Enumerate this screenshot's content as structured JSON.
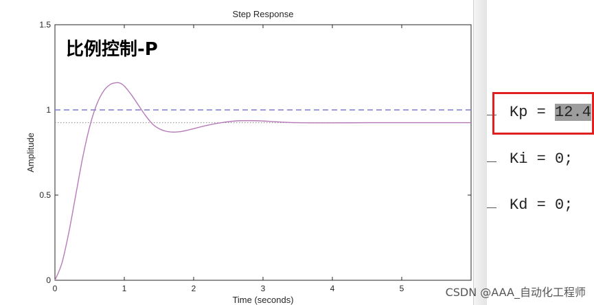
{
  "chart_data": {
    "type": "line",
    "title": "Step Response",
    "overlay_title": "比例控制-P",
    "xlabel": "Time (seconds)",
    "ylabel": "Amplitude",
    "xlim": [
      0,
      6
    ],
    "ylim": [
      0,
      1.5
    ],
    "x_ticks": [
      "0",
      "1",
      "2",
      "3",
      "4",
      "5"
    ],
    "y_ticks": [
      "0",
      "0.5",
      "1",
      "1.5"
    ],
    "grid": false,
    "series": [
      {
        "color": "#b77ab9",
        "x": [
          0,
          0.1,
          0.2,
          0.3,
          0.4,
          0.5,
          0.6,
          0.7,
          0.8,
          0.9,
          0.95,
          1.0,
          1.1,
          1.2,
          1.3,
          1.4,
          1.5,
          1.6,
          1.7,
          1.8,
          1.9,
          2.0,
          2.2,
          2.4,
          2.6,
          2.8,
          3.0,
          3.2,
          3.5,
          4.0,
          4.5,
          5.0,
          5.5,
          6.0
        ],
        "y": [
          0,
          0.1,
          0.28,
          0.5,
          0.72,
          0.9,
          1.03,
          1.11,
          1.15,
          1.16,
          1.155,
          1.14,
          1.09,
          1.03,
          0.97,
          0.92,
          0.89,
          0.875,
          0.87,
          0.872,
          0.88,
          0.89,
          0.91,
          0.925,
          0.935,
          0.937,
          0.935,
          0.93,
          0.925,
          0.924,
          0.925,
          0.925,
          0.925,
          0.925
        ]
      }
    ],
    "reference_lines": [
      {
        "y": 1.0,
        "style": "dashed",
        "color": "#7b7bd0"
      },
      {
        "y": 0.925,
        "style": "dotted",
        "color": "#888888"
      }
    ]
  },
  "code": {
    "kp_prefix": "Kp = ",
    "kp_value": "12.4",
    "kp_suffix": ";",
    "ki": "Ki = 0;",
    "kd": "Kd = 0;"
  },
  "watermark": "CSDN @AAA_自动化工程师"
}
